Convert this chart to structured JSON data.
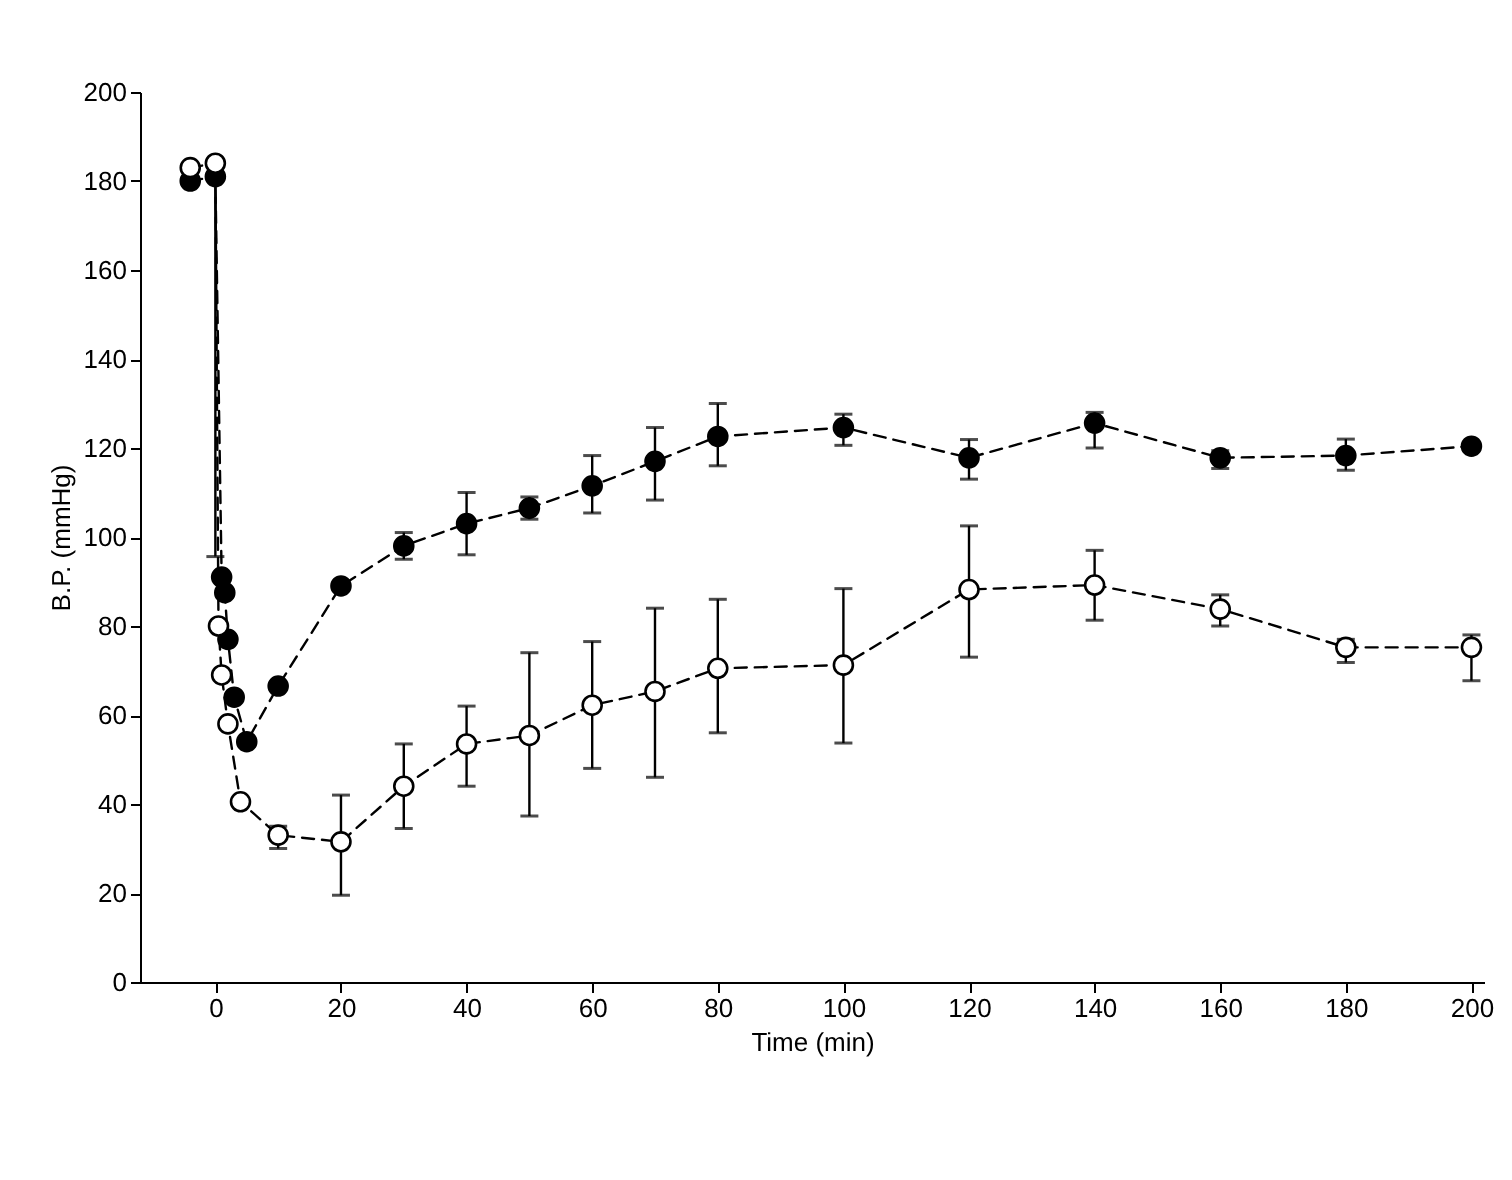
{
  "chart_data": {
    "type": "line",
    "xlabel": "Time (min)",
    "ylabel": "B.P. (mmHg)",
    "xlim": [
      -12,
      202
    ],
    "xticks": [
      0,
      20,
      40,
      60,
      80,
      100,
      120,
      140,
      160,
      180,
      200
    ],
    "ylim": [
      0,
      200
    ],
    "yticks": [
      0,
      20,
      40,
      60,
      80,
      100,
      120,
      140,
      160,
      180,
      200
    ],
    "grid": false,
    "marker": "circle",
    "line_style": "dashed",
    "series": [
      {
        "color": "#000000",
        "x": [
          -4,
          0,
          1,
          1.5,
          2,
          3,
          5,
          10,
          20,
          30,
          40,
          50,
          60,
          70,
          80,
          100,
          120,
          140,
          160,
          180,
          200
        ],
        "values": [
          180,
          181,
          91,
          87.5,
          77,
          64,
          54,
          66.5,
          89,
          98,
          103,
          106.5,
          111.5,
          117,
          122.6,
          124.6,
          117.8,
          125.6,
          117.8,
          118.3,
          120.4
        ],
        "errors": [
          null,
          [
            95.6,
            184
          ],
          null,
          null,
          null,
          null,
          null,
          null,
          null,
          [
            95,
            101
          ],
          [
            96,
            110
          ],
          [
            104,
            109
          ],
          [
            105.4,
            118.3
          ],
          [
            108.3,
            124.6
          ],
          [
            116,
            130
          ],
          [
            120.6,
            127.6
          ],
          [
            113,
            121.9
          ],
          [
            120,
            128
          ],
          [
            115.4,
            119.4
          ],
          [
            115,
            122
          ],
          null
        ]
      },
      {
        "color": "#000000",
        "x": [
          -4,
          0,
          0.5,
          1,
          2,
          4,
          10,
          20,
          30,
          40,
          50,
          60,
          70,
          80,
          100,
          120,
          140,
          160,
          180,
          200
        ],
        "values": [
          183,
          184,
          80,
          69,
          58,
          40.5,
          33,
          31.5,
          44,
          53.5,
          55.4,
          62.2,
          65.3,
          70.5,
          71.2,
          88.2,
          89.2,
          83.8,
          75.2,
          75.2
        ],
        "errors": [
          null,
          null,
          null,
          null,
          null,
          null,
          [
            30,
            35
          ],
          [
            19.5,
            42
          ],
          [
            34.5,
            53.5
          ],
          [
            44,
            62
          ],
          [
            37.3,
            74
          ],
          [
            48,
            76.5
          ],
          [
            46,
            84
          ],
          [
            56,
            86
          ],
          [
            53.7,
            88.4
          ],
          [
            73,
            102.5
          ],
          [
            81.3,
            97
          ],
          [
            80,
            87
          ],
          [
            71.8,
            77
          ],
          [
            67.7,
            78
          ]
        ]
      }
    ]
  }
}
